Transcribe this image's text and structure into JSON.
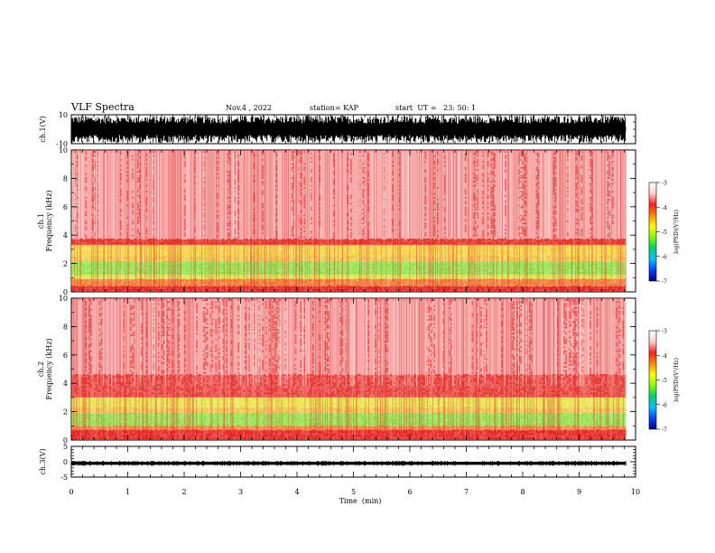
{
  "header": {
    "title": "VLF Spectra",
    "date": "Nov.4 , 2022",
    "station": "station= KAP",
    "start": "start  UT =   23: 50: 1"
  },
  "chart_data": [
    {
      "type": "line",
      "panel": "ch1-waveform",
      "ylabel": "ch.1(V)",
      "ylim": [
        -10,
        10
      ],
      "y_ticks": [
        "10",
        "-10"
      ],
      "xlim": [
        0,
        10
      ],
      "fill": "#000000",
      "envelope": "dense saturating waveform spanning about ±8 V for the whole interval"
    },
    {
      "type": "heatmap",
      "panel": "ch1-spectrogram",
      "ylabel": "ch.1\nFrequency  (kHz)",
      "ylim": [
        0,
        10
      ],
      "y_ticks": [
        "0",
        "2",
        "4",
        "6",
        "8",
        "10"
      ],
      "xlim": [
        0,
        10
      ],
      "data_end_min": 9.83,
      "bands": [
        {
          "from": 0.0,
          "to": 0.4,
          "color": "#e81919",
          "density": 0.95
        },
        {
          "from": 0.4,
          "to": 0.9,
          "color": "#f27a2b",
          "density": 0.9
        },
        {
          "from": 0.9,
          "to": 1.2,
          "color": "#e0e03a",
          "density": 0.85
        },
        {
          "from": 1.2,
          "to": 2.1,
          "color": "#8ee03f",
          "density": 0.9
        },
        {
          "from": 2.1,
          "to": 2.5,
          "color": "#f3c13a",
          "density": 0.8
        },
        {
          "from": 2.5,
          "to": 3.3,
          "color": "#f5d233",
          "density": 0.85
        },
        {
          "from": 3.3,
          "to": 3.7,
          "color": "#e62a22",
          "density": 0.95
        },
        {
          "from": 3.7,
          "to": 10.0,
          "color": "#ee4a4a",
          "density": 0.25
        }
      ]
    },
    {
      "type": "heatmap",
      "panel": "ch2-spectrogram",
      "ylabel": "ch.2\nFrequency  (kHz)",
      "ylim": [
        0,
        10
      ],
      "y_ticks": [
        "0",
        "2",
        "4",
        "6",
        "8",
        "10"
      ],
      "xlim": [
        0,
        10
      ],
      "data_end_min": 9.83,
      "bands": [
        {
          "from": 0.0,
          "to": 0.7,
          "color": "#e81919",
          "density": 0.9
        },
        {
          "from": 0.7,
          "to": 1.0,
          "color": "#f27a2b",
          "density": 0.85
        },
        {
          "from": 1.0,
          "to": 1.9,
          "color": "#8ee03f",
          "density": 0.9
        },
        {
          "from": 1.9,
          "to": 2.3,
          "color": "#f3c13a",
          "density": 0.8
        },
        {
          "from": 2.3,
          "to": 3.0,
          "color": "#e6e33a",
          "density": 0.85
        },
        {
          "from": 3.0,
          "to": 4.6,
          "color": "#e8302a",
          "density": 0.8
        },
        {
          "from": 4.6,
          "to": 10.0,
          "color": "#ee4a4a",
          "density": 0.25
        }
      ]
    },
    {
      "type": "line",
      "panel": "ch3-waveform",
      "ylabel": "ch.3(V)",
      "ylim": [
        -5,
        5
      ],
      "y_ticks": [
        "5",
        "0",
        "-5"
      ],
      "xlim": [
        0,
        10
      ],
      "xlabel": "Time  (min)",
      "x_ticks": [
        "0",
        "1",
        "2",
        "3",
        "4",
        "5",
        "6",
        "7",
        "8",
        "9",
        "10"
      ],
      "fill": "#000000",
      "envelope": "narrow band about -1 to 0 V for the whole interval"
    }
  ],
  "colorbar": {
    "label": "log(PSD)(V²/Hz)",
    "ticks": [
      "-3",
      "-4",
      "-5",
      "-6",
      "-7"
    ],
    "range": [
      -7,
      -3
    ],
    "gradient": [
      "#ffffff",
      "#ffd0d0",
      "#ff2020",
      "#ff8a00",
      "#ffff00",
      "#7fff00",
      "#00d070",
      "#00c0ff",
      "#0040ff",
      "#000080"
    ]
  }
}
